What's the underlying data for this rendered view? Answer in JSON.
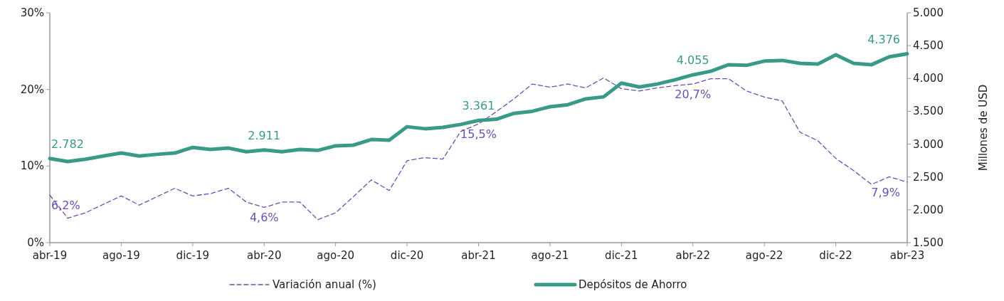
{
  "chart_data": {
    "type": "line",
    "categories": [
      "abr-19",
      null,
      null,
      null,
      "ago-19",
      null,
      null,
      null,
      "dic-19",
      null,
      null,
      null,
      "abr-20",
      null,
      null,
      null,
      "ago-20",
      null,
      null,
      null,
      "dic-20",
      null,
      null,
      null,
      "abr-21",
      null,
      null,
      null,
      "ago-21",
      null,
      null,
      null,
      "dic-21",
      null,
      null,
      null,
      "abr-22",
      null,
      null,
      null,
      "ago-22",
      null,
      null,
      null,
      "dic-22",
      null,
      null,
      null,
      "abr-23"
    ],
    "ylim": [
      0,
      30
    ],
    "yticks": [
      {
        "value": 0,
        "label": "0%"
      },
      {
        "value": 10,
        "label": "10%"
      },
      {
        "value": 20,
        "label": "20%"
      },
      {
        "value": 30,
        "label": "30%"
      }
    ],
    "y2lim": [
      1500,
      5000
    ],
    "y2ticks": [
      {
        "value": 1500,
        "label": "1.500"
      },
      {
        "value": 2000,
        "label": "2.000"
      },
      {
        "value": 2500,
        "label": "2.500"
      },
      {
        "value": 3000,
        "label": "3.000"
      },
      {
        "value": 3500,
        "label": "3.500"
      },
      {
        "value": 4000,
        "label": "4.000"
      },
      {
        "value": 4500,
        "label": "4.500"
      },
      {
        "value": 5000,
        "label": "5.000"
      }
    ],
    "y2label": "Millones de USD",
    "legend": "bottom",
    "grid": false,
    "series": [
      {
        "name": "Variación anual (%)",
        "color": "#6a4fb0",
        "line_style": "dashed",
        "value_labels": [
          "6,2%",
          null,
          null,
          null,
          null,
          null,
          null,
          null,
          null,
          null,
          null,
          null,
          "4,6%",
          null,
          null,
          null,
          null,
          null,
          null,
          null,
          null,
          null,
          null,
          null,
          "15,5%",
          null,
          null,
          null,
          null,
          null,
          null,
          null,
          null,
          null,
          null,
          null,
          "20,7%",
          null,
          null,
          null,
          null,
          null,
          null,
          null,
          null,
          null,
          null,
          null,
          "7,9%"
        ],
        "values": [
          6.2,
          3.2,
          3.9,
          5.0,
          6.1,
          4.9,
          6.0,
          7.1,
          6.1,
          6.4,
          7.1,
          5.3,
          4.6,
          5.3,
          5.3,
          3.0,
          3.9,
          6.0,
          8.2,
          6.8,
          10.7,
          11.1,
          10.9,
          14.5,
          15.5,
          17.1,
          18.8,
          20.7,
          20.3,
          20.7,
          20.2,
          21.5,
          20.1,
          19.8,
          20.2,
          20.5,
          20.7,
          21.4,
          21.4,
          19.8,
          19.0,
          18.5,
          14.4,
          13.3,
          11.0,
          9.4,
          7.6,
          8.6,
          7.9
        ]
      },
      {
        "name": "Depósitos de Ahorro",
        "color": "#3a9a88",
        "axis": "y2",
        "line_style": "solid",
        "value_labels": [
          "2.782",
          null,
          null,
          null,
          null,
          null,
          null,
          null,
          null,
          null,
          null,
          null,
          "2.911",
          null,
          null,
          null,
          null,
          null,
          null,
          null,
          null,
          null,
          null,
          null,
          "3.361",
          null,
          null,
          null,
          null,
          null,
          null,
          null,
          null,
          null,
          null,
          null,
          "4.055",
          null,
          null,
          null,
          null,
          null,
          null,
          null,
          null,
          null,
          null,
          null,
          "4.376"
        ],
        "values": [
          2782,
          2735,
          2770,
          2820,
          2865,
          2820,
          2845,
          2865,
          2950,
          2920,
          2940,
          2885,
          2911,
          2885,
          2920,
          2905,
          2975,
          2985,
          3070,
          3060,
          3265,
          3235,
          3255,
          3300,
          3361,
          3380,
          3470,
          3500,
          3570,
          3600,
          3690,
          3720,
          3930,
          3870,
          3915,
          3980,
          4055,
          4110,
          4210,
          4200,
          4265,
          4275,
          4230,
          4220,
          4360,
          4230,
          4210,
          4330,
          4376
        ]
      }
    ]
  }
}
